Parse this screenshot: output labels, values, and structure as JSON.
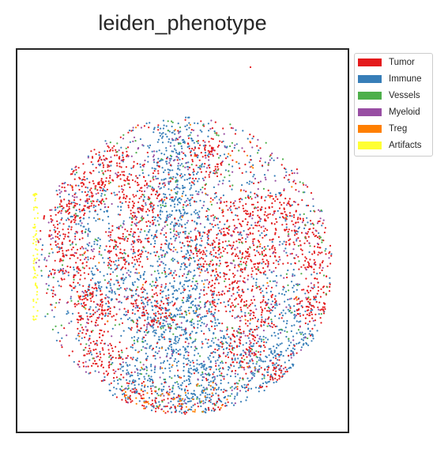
{
  "chart_data": {
    "type": "scatter",
    "title": "leiden_phenotype",
    "xlabel": "",
    "ylabel": "",
    "axes_ticks_visible": false,
    "legend_position": "outside right, top",
    "categories": [
      {
        "name": "Tumor",
        "color": "#e41a1c",
        "approx_points": 2600
      },
      {
        "name": "Immune",
        "color": "#377eb8",
        "approx_points": 2400
      },
      {
        "name": "Vessels",
        "color": "#4daf4a",
        "approx_points": 300
      },
      {
        "name": "Myeloid",
        "color": "#984ea3",
        "approx_points": 450
      },
      {
        "name": "Treg",
        "color": "#ff7f00",
        "approx_points": 120
      },
      {
        "name": "Artifacts",
        "color": "#ffff33",
        "approx_points": 70
      }
    ],
    "distribution": "roughly circular tissue core; Immune cells concentrated in a central vertical band, Tumor cells in ring/patch clusters around it, Artifacts along the left edge, a single outlier Tumor point near the top-right"
  }
}
